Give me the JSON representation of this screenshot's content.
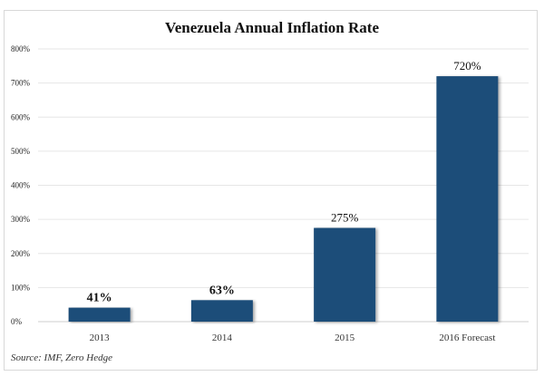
{
  "chart_data": {
    "type": "bar",
    "title": "Venezuela Annual Inflation Rate",
    "categories": [
      "2013",
      "2014",
      "2015",
      "2016 Forecast"
    ],
    "values": [
      41,
      63,
      275,
      720
    ],
    "data_labels": [
      "41%",
      "63%",
      "275%",
      "720%"
    ],
    "xlabel": "",
    "ylabel": "",
    "ylim": [
      0,
      800
    ],
    "yticks": [
      0,
      100,
      200,
      300,
      400,
      500,
      600,
      700,
      800
    ],
    "ytick_labels": [
      "0%",
      "100%",
      "200%",
      "300%",
      "400%",
      "500%",
      "600%",
      "700%",
      "800%"
    ],
    "grid": true,
    "legend": "none",
    "bar_color": "#1f4e79",
    "source": "Source: IMF, Zero Hedge"
  }
}
